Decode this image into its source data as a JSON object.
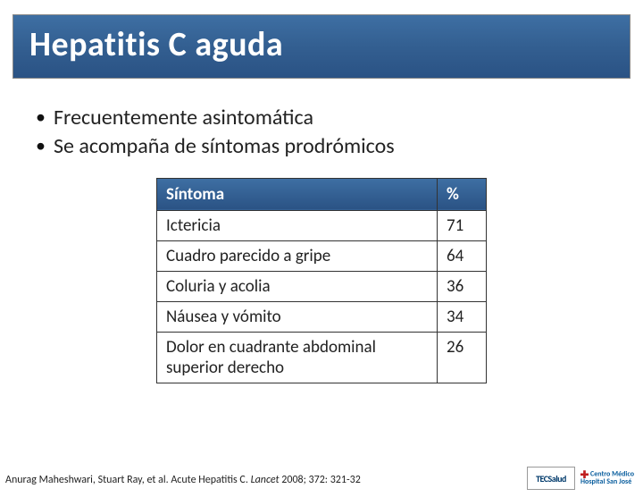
{
  "title": "Hepatitis C aguda",
  "bullets": [
    "Frecuentemente asintomática",
    "Se acompaña de síntomas prodrómicos"
  ],
  "table": {
    "header_symptom": "Síntoma",
    "header_percent": "%",
    "rows": [
      {
        "symptom": "Ictericia",
        "percent": "71"
      },
      {
        "symptom": "Cuadro parecido a gripe",
        "percent": "64"
      },
      {
        "symptom": "Coluria y acolia",
        "percent": "36"
      },
      {
        "symptom": "Náusea y vómito",
        "percent": "34"
      },
      {
        "symptom": "Dolor en cuadrante abdominal superior derecho",
        "percent": "26"
      }
    ],
    "header_bg": "#335f91",
    "header_fg": "#ffffff",
    "cell_bg": "#ffffff",
    "border_color": "#333333",
    "font_size": 19
  },
  "citation": {
    "authors": "Anurag Maheshwari, Stuart Ray, et al.",
    "title": "Acute Hepatitis C.",
    "journal": "Lancet",
    "ref": "2008; 372: 321-32"
  },
  "logos": {
    "tec": "TECSalud",
    "cm_line1": "Centro Médico",
    "cm_line2": "Hospital San José"
  },
  "colors": {
    "title_bar_bg": "#335f91",
    "title_fg": "#ffffff",
    "body_bg": "#ffffff",
    "text": "#222222"
  }
}
